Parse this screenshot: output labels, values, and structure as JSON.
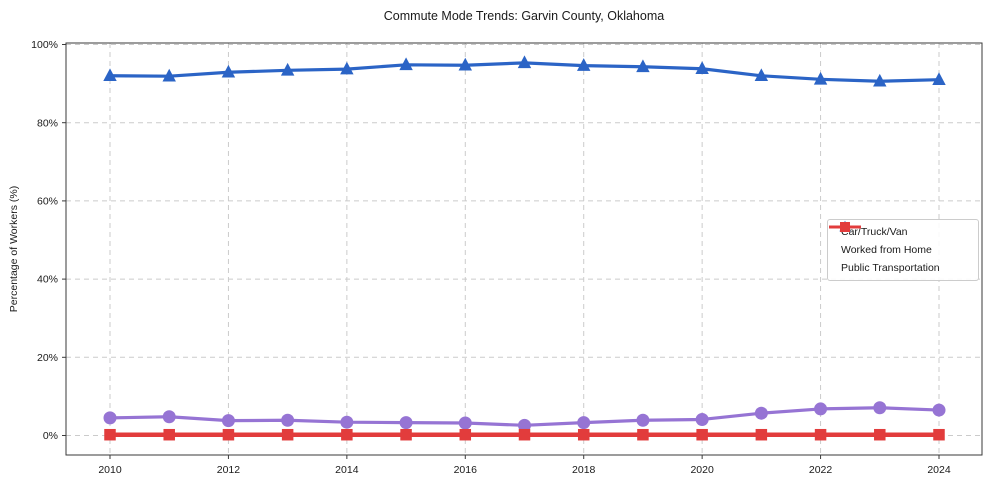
{
  "chart_data": {
    "type": "line",
    "title": "Commute Mode Trends: Garvin County, Oklahoma",
    "xlabel": "",
    "ylabel": "Percentage of Workers (%)",
    "x": [
      2010,
      2011,
      2012,
      2013,
      2014,
      2015,
      2016,
      2017,
      2018,
      2019,
      2020,
      2021,
      2022,
      2023,
      2024
    ],
    "xticks": [
      2010,
      2012,
      2014,
      2016,
      2018,
      2020,
      2022,
      2024
    ],
    "yticks": [
      0,
      20,
      40,
      60,
      80,
      100
    ],
    "ytick_suffix": "%",
    "ylim": [
      -5,
      100
    ],
    "grid": true,
    "legend_position": "center-right",
    "series": [
      {
        "name": "Car/Truck/Van",
        "color": "#2b64c6",
        "marker": "triangle",
        "line_width": 3.2,
        "marker_size": 12,
        "values": [
          92.0,
          91.9,
          92.9,
          93.4,
          93.7,
          94.8,
          94.7,
          95.3,
          94.6,
          94.3,
          93.8,
          92.0,
          91.1,
          90.6,
          91.0
        ]
      },
      {
        "name": "Worked from Home",
        "color": "#9674d4",
        "marker": "circle",
        "line_width": 3.2,
        "marker_size": 13,
        "values": [
          4.5,
          4.8,
          3.8,
          3.9,
          3.4,
          3.3,
          3.2,
          2.6,
          3.3,
          3.9,
          4.1,
          5.7,
          6.8,
          7.1,
          6.5
        ]
      },
      {
        "name": "Public Transportation",
        "color": "#e23c3c",
        "marker": "square",
        "line_width": 4.5,
        "marker_size": 11.5,
        "values": [
          0.2,
          0.2,
          0.2,
          0.2,
          0.2,
          0.2,
          0.2,
          0.2,
          0.2,
          0.2,
          0.2,
          0.2,
          0.2,
          0.2,
          0.2
        ]
      }
    ]
  }
}
